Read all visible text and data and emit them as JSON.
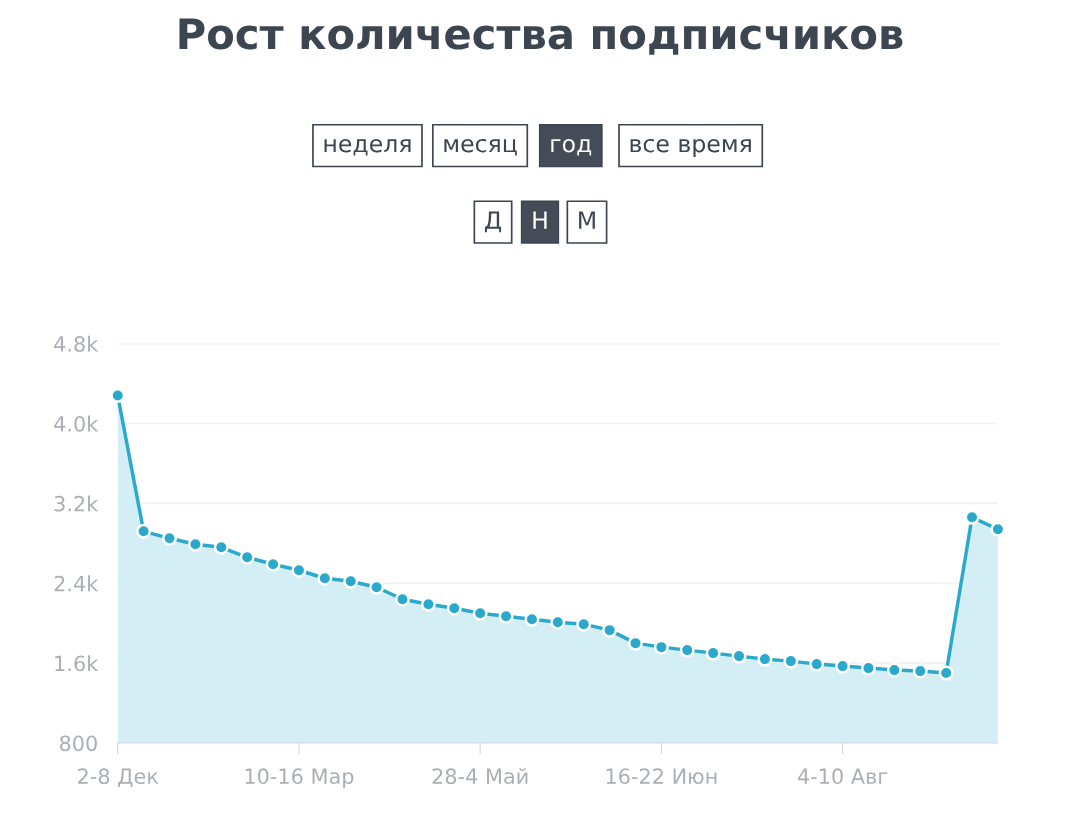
{
  "chart_data": {
    "type": "area",
    "title": "Рост количества подписчиков",
    "annotations": [
      "неделя",
      "месяц",
      "год",
      "все время",
      "Д",
      "Н",
      "М"
    ],
    "categories": [
      "2-8 Дек",
      null,
      null,
      null,
      null,
      null,
      null,
      "10-16 Мар",
      null,
      null,
      null,
      null,
      null,
      null,
      "28-4 Май",
      null,
      null,
      null,
      null,
      null,
      null,
      "16-22 Июн",
      null,
      null,
      null,
      null,
      null,
      null,
      "4-10 Авг",
      null,
      null,
      null,
      null,
      null,
      null
    ],
    "series": [
      {
        "color": "#2aa9cc",
        "values": [
          4280,
          2920,
          2850,
          2790,
          2760,
          2660,
          2590,
          2530,
          2450,
          2420,
          2360,
          2240,
          2190,
          2150,
          2100,
          2070,
          2040,
          2010,
          1990,
          1930,
          1800,
          1760,
          1730,
          1700,
          1670,
          1640,
          1620,
          1590,
          1570,
          1550,
          1530,
          1520,
          1500,
          3060,
          2940
        ]
      }
    ],
    "ylim": [
      800,
      4800
    ],
    "yticks": [
      {
        "value": 800,
        "label": "800"
      },
      {
        "value": 1600,
        "label": "1.6k"
      },
      {
        "value": 2400,
        "label": "2.4k"
      },
      {
        "value": 3200,
        "label": "3.2k"
      },
      {
        "value": 4000,
        "label": "4.0k"
      },
      {
        "value": 4800,
        "label": "4.8k"
      }
    ],
    "grid": "y",
    "marker": "circle",
    "line_style": "solid",
    "legend": false
  }
}
